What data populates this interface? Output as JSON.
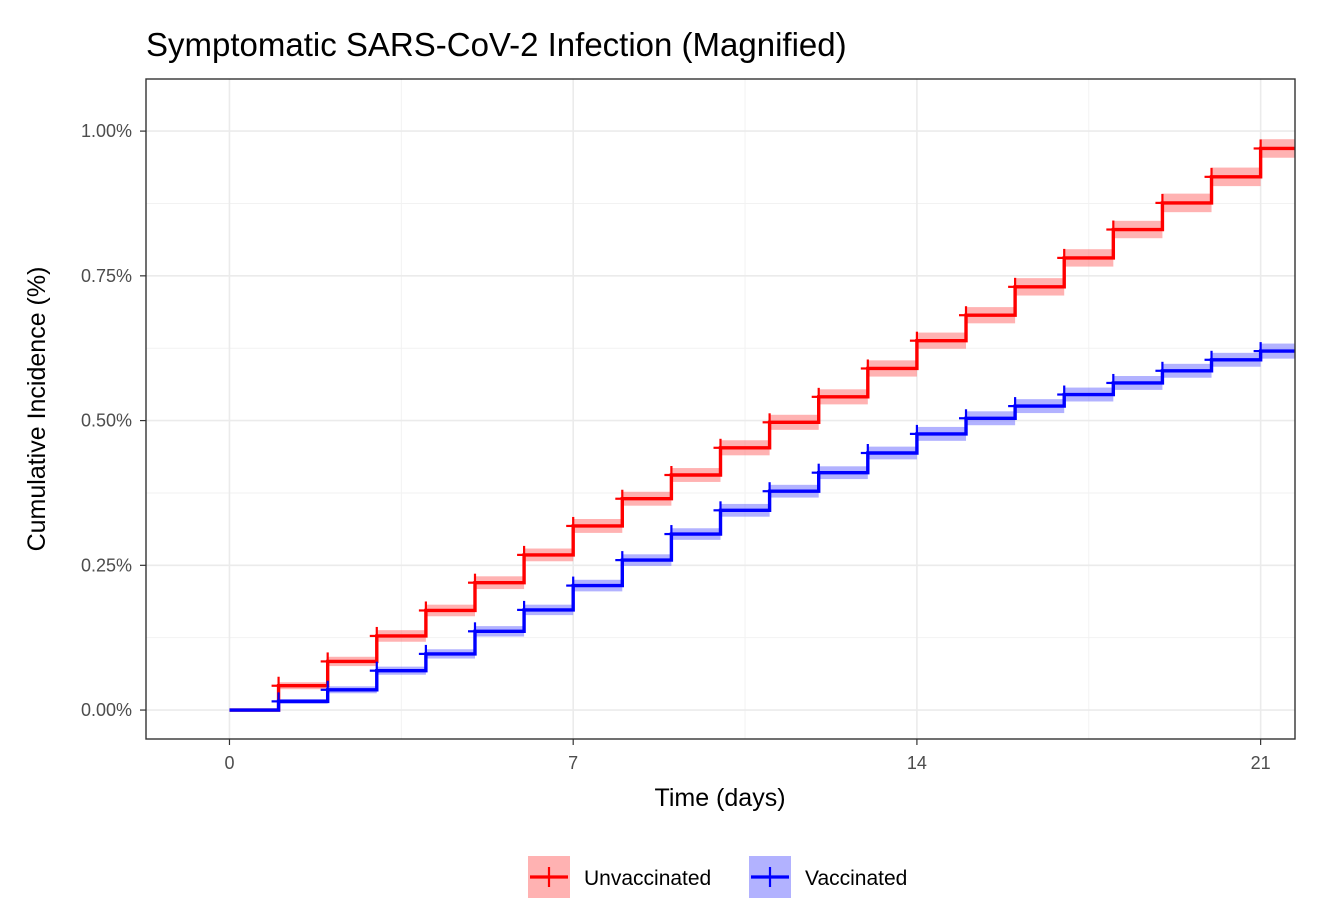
{
  "chart_data": {
    "type": "line",
    "title": "Symptomatic SARS-CoV-2 Infection (Magnified)",
    "xlabel": "Time (days)",
    "ylabel": "Cumulative Incidence (%)",
    "xlim": [
      -1.7,
      21.7
    ],
    "ylim": [
      -0.0005,
      0.0109
    ],
    "x_ticks": [
      0,
      7,
      14,
      21
    ],
    "x_tick_labels": [
      "0",
      "7",
      "14",
      "21"
    ],
    "y_ticks": [
      0,
      0.0025,
      0.005,
      0.0075,
      0.01
    ],
    "y_tick_labels": [
      "0.00%",
      "0.25%",
      "0.50%",
      "0.75%",
      "1.00%"
    ],
    "grid": true,
    "legend_position": "bottom",
    "series": [
      {
        "name": "Unvaccinated",
        "color": "#ff0000",
        "fill_color": "#ff6666",
        "x": [
          0,
          1,
          2,
          3,
          4,
          5,
          6,
          7,
          8,
          9,
          10,
          11,
          12,
          13,
          14,
          15,
          16,
          17,
          18,
          19,
          20,
          21
        ],
        "y": [
          0,
          0.00042,
          0.00084,
          0.00128,
          0.00172,
          0.0022,
          0.00268,
          0.00318,
          0.00365,
          0.00406,
          0.00453,
          0.00497,
          0.00541,
          0.0059,
          0.00638,
          0.00682,
          0.00731,
          0.00781,
          0.0083,
          0.00876,
          0.00921,
          0.0097
        ],
        "ci_half_width": [
          0,
          6e-05,
          8e-05,
          0.0001,
          0.0001,
          0.00011,
          0.00011,
          0.00012,
          0.00012,
          0.00012,
          0.00013,
          0.00013,
          0.00013,
          0.00014,
          0.00014,
          0.00014,
          0.00015,
          0.00015,
          0.00015,
          0.00016,
          0.00016,
          0.00016
        ],
        "censor_x": [
          1,
          2,
          3,
          4,
          5,
          6,
          7,
          8,
          9,
          10,
          11,
          12,
          13,
          14,
          15,
          16,
          17,
          18,
          19,
          20,
          21,
          21.95
        ],
        "censor_y": [
          0.00042,
          0.00084,
          0.00128,
          0.00172,
          0.0022,
          0.00268,
          0.00318,
          0.00365,
          0.00406,
          0.00453,
          0.00497,
          0.00541,
          0.0059,
          0.00638,
          0.00682,
          0.00731,
          0.00781,
          0.0083,
          0.00876,
          0.00921,
          0.0097,
          0.01015
        ]
      },
      {
        "name": "Vaccinated",
        "color": "#0000ff",
        "fill_color": "#6666ff",
        "x": [
          0,
          1,
          2,
          3,
          4,
          5,
          6,
          7,
          8,
          9,
          10,
          11,
          12,
          13,
          14,
          15,
          16,
          17,
          18,
          19,
          20,
          21
        ],
        "y": [
          0,
          0.00015,
          0.00035,
          0.00068,
          0.00097,
          0.00136,
          0.00173,
          0.00215,
          0.00259,
          0.00304,
          0.00345,
          0.00378,
          0.0041,
          0.00444,
          0.00477,
          0.00504,
          0.00525,
          0.00545,
          0.00565,
          0.00586,
          0.00605,
          0.0062
        ],
        "ci_half_width": [
          0,
          4e-05,
          6e-05,
          7e-05,
          8e-05,
          9e-05,
          9e-05,
          0.0001,
          0.0001,
          0.0001,
          0.00011,
          0.00011,
          0.00011,
          0.00011,
          0.00012,
          0.00012,
          0.00012,
          0.00012,
          0.00012,
          0.00012,
          0.00012,
          0.00013
        ],
        "censor_x": [
          1,
          2,
          3,
          4,
          5,
          6,
          7,
          8,
          9,
          10,
          11,
          12,
          13,
          14,
          15,
          16,
          17,
          18,
          19,
          20,
          21,
          21.95
        ],
        "censor_y": [
          0.00015,
          0.00035,
          0.00068,
          0.00097,
          0.00136,
          0.00173,
          0.00215,
          0.00259,
          0.00304,
          0.00345,
          0.00378,
          0.0041,
          0.00444,
          0.00477,
          0.00504,
          0.00525,
          0.00545,
          0.00565,
          0.00586,
          0.00605,
          0.0062,
          0.00635
        ]
      }
    ]
  }
}
